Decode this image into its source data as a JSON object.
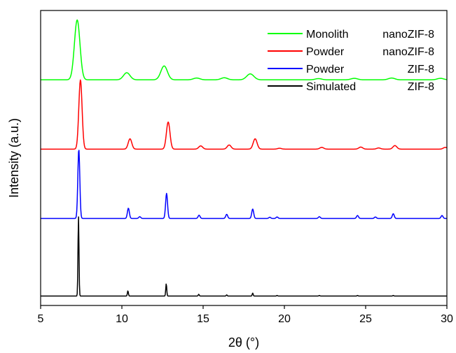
{
  "chart_data": {
    "type": "line",
    "xlabel": "2θ (°)",
    "ylabel": "Intensity (a.u.)",
    "xlim": [
      5,
      30
    ],
    "x_ticks": [
      "5",
      "10",
      "15",
      "20",
      "25",
      "30"
    ],
    "grid": false,
    "legend_position": "top-right",
    "series": [
      {
        "name": "Monolith nanoZIF-8",
        "legend_left": "Monolith",
        "legend_right": "nanoZIF-8",
        "color": "#00ff00",
        "baseline": 0.765,
        "peaks": [
          {
            "x": 7.25,
            "h": 0.203,
            "w": 0.17
          },
          {
            "x": 10.3,
            "h": 0.024,
            "w": 0.2
          },
          {
            "x": 12.6,
            "h": 0.047,
            "w": 0.2
          },
          {
            "x": 14.6,
            "h": 0.006,
            "w": 0.2
          },
          {
            "x": 16.3,
            "h": 0.007,
            "w": 0.2
          },
          {
            "x": 17.9,
            "h": 0.02,
            "w": 0.22
          },
          {
            "x": 22.1,
            "h": 0.004,
            "w": 0.2
          },
          {
            "x": 24.3,
            "h": 0.005,
            "w": 0.2
          },
          {
            "x": 26.6,
            "h": 0.006,
            "w": 0.2
          },
          {
            "x": 29.6,
            "h": 0.005,
            "w": 0.2
          }
        ]
      },
      {
        "name": "Powder nanoZIF-8",
        "legend_left": "Powder",
        "legend_right": "nanoZIF-8",
        "color": "#ff0000",
        "baseline": 0.53,
        "peaks": [
          {
            "x": 7.45,
            "h": 0.235,
            "w": 0.1
          },
          {
            "x": 10.5,
            "h": 0.035,
            "w": 0.11
          },
          {
            "x": 12.85,
            "h": 0.092,
            "w": 0.11
          },
          {
            "x": 14.85,
            "h": 0.011,
            "w": 0.12
          },
          {
            "x": 16.6,
            "h": 0.014,
            "w": 0.12
          },
          {
            "x": 18.2,
            "h": 0.035,
            "w": 0.12
          },
          {
            "x": 19.7,
            "h": 0.003,
            "w": 0.12
          },
          {
            "x": 22.3,
            "h": 0.006,
            "w": 0.12
          },
          {
            "x": 24.7,
            "h": 0.007,
            "w": 0.12
          },
          {
            "x": 25.8,
            "h": 0.004,
            "w": 0.12
          },
          {
            "x": 26.8,
            "h": 0.012,
            "w": 0.12
          },
          {
            "x": 29.9,
            "h": 0.006,
            "w": 0.12
          }
        ]
      },
      {
        "name": "Powder ZIF-8",
        "legend_left": "Powder",
        "legend_right": "ZIF-8",
        "color": "#0000ff",
        "baseline": 0.295,
        "peaks": [
          {
            "x": 7.35,
            "h": 0.235,
            "w": 0.06
          },
          {
            "x": 10.4,
            "h": 0.035,
            "w": 0.06
          },
          {
            "x": 11.1,
            "h": 0.006,
            "w": 0.06
          },
          {
            "x": 12.75,
            "h": 0.085,
            "w": 0.06
          },
          {
            "x": 14.75,
            "h": 0.011,
            "w": 0.06
          },
          {
            "x": 16.45,
            "h": 0.014,
            "w": 0.06
          },
          {
            "x": 18.05,
            "h": 0.032,
            "w": 0.06
          },
          {
            "x": 19.1,
            "h": 0.004,
            "w": 0.06
          },
          {
            "x": 19.55,
            "h": 0.005,
            "w": 0.06
          },
          {
            "x": 22.15,
            "h": 0.006,
            "w": 0.06
          },
          {
            "x": 24.5,
            "h": 0.01,
            "w": 0.06
          },
          {
            "x": 25.6,
            "h": 0.005,
            "w": 0.06
          },
          {
            "x": 26.7,
            "h": 0.016,
            "w": 0.06
          },
          {
            "x": 29.7,
            "h": 0.01,
            "w": 0.06
          }
        ]
      },
      {
        "name": "Simulated ZIF-8",
        "legend_left": "Simulated",
        "legend_right": "ZIF-8",
        "color": "#000000",
        "baseline": 0.032,
        "peaks": [
          {
            "x": 7.33,
            "h": 0.27,
            "w": 0.03
          },
          {
            "x": 10.37,
            "h": 0.018,
            "w": 0.03
          },
          {
            "x": 12.73,
            "h": 0.042,
            "w": 0.03
          },
          {
            "x": 14.73,
            "h": 0.006,
            "w": 0.03
          },
          {
            "x": 16.45,
            "h": 0.004,
            "w": 0.03
          },
          {
            "x": 18.05,
            "h": 0.01,
            "w": 0.03
          },
          {
            "x": 19.55,
            "h": 0.002,
            "w": 0.03
          },
          {
            "x": 22.15,
            "h": 0.002,
            "w": 0.03
          },
          {
            "x": 24.5,
            "h": 0.002,
            "w": 0.03
          },
          {
            "x": 26.7,
            "h": 0.002,
            "w": 0.03
          }
        ]
      }
    ]
  }
}
